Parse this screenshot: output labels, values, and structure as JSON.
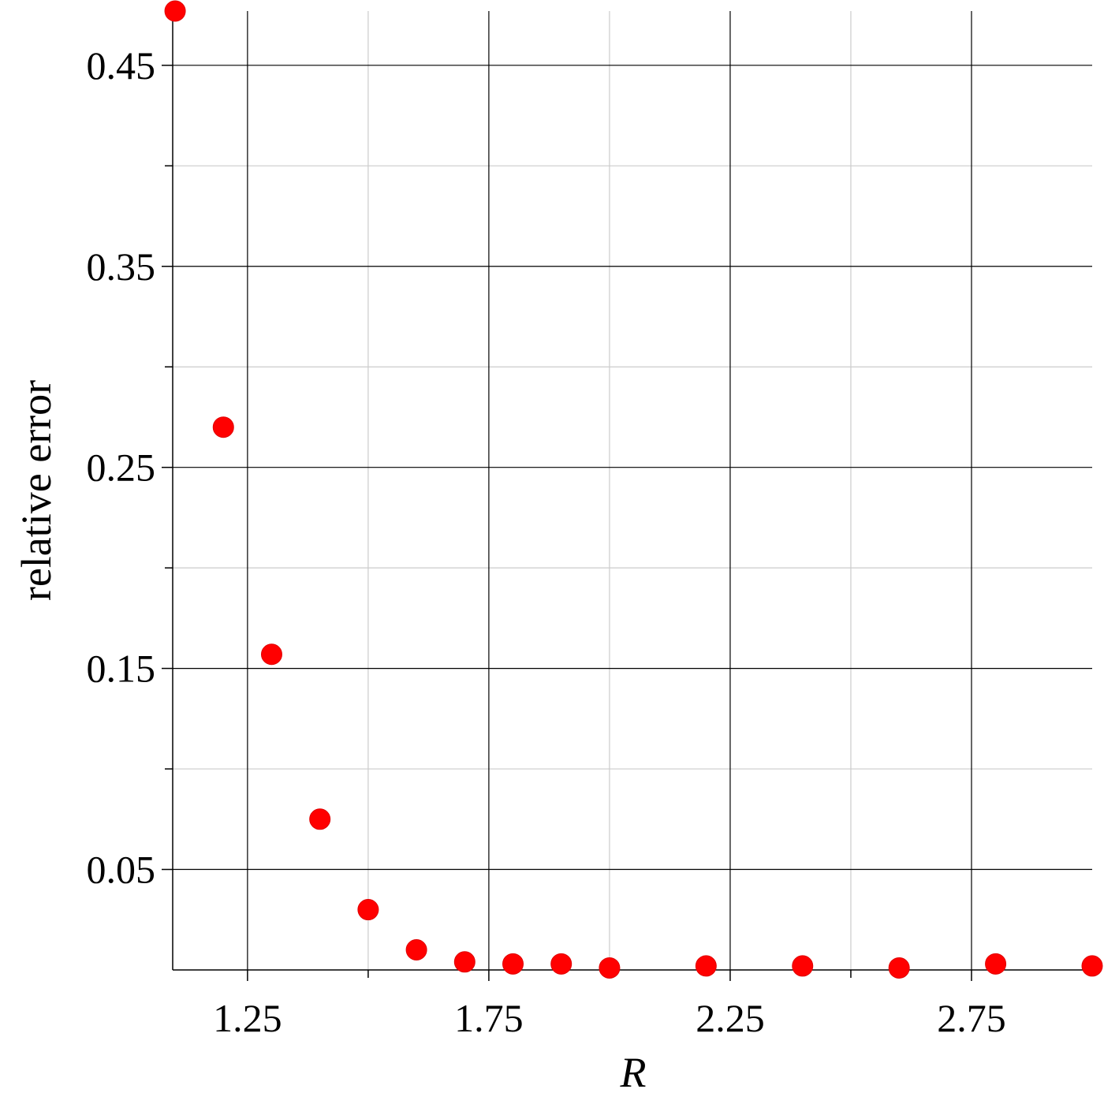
{
  "chart_data": {
    "type": "scatter",
    "title": "",
    "xlabel": "R",
    "ylabel": "relative error",
    "xlim": [
      1.095,
      3.0
    ],
    "ylim": [
      0.0,
      0.477
    ],
    "x_ticks": [
      1.25,
      1.75,
      2.25,
      2.75
    ],
    "x_tick_labels": [
      "1.25",
      "1.75",
      "2.25",
      "2.75"
    ],
    "x_minor_ticks": [
      1.5,
      2.0,
      2.5
    ],
    "y_ticks": [
      0.05,
      0.15,
      0.25,
      0.35,
      0.45
    ],
    "y_tick_labels": [
      "0.05",
      "0.15",
      "0.25",
      "0.35",
      "0.45"
    ],
    "y_minor_ticks": [
      0.1,
      0.2,
      0.3,
      0.4
    ],
    "grid": true,
    "legend": "none",
    "marker_color": "#ff0000",
    "major_grid_color": "#000000",
    "minor_grid_color": "#cccccc",
    "series": [
      {
        "points": [
          {
            "x": 1.1,
            "y": 0.477
          },
          {
            "x": 1.2,
            "y": 0.27
          },
          {
            "x": 1.3,
            "y": 0.157
          },
          {
            "x": 1.4,
            "y": 0.075
          },
          {
            "x": 1.5,
            "y": 0.03
          },
          {
            "x": 1.6,
            "y": 0.01
          },
          {
            "x": 1.7,
            "y": 0.004
          },
          {
            "x": 1.8,
            "y": 0.003
          },
          {
            "x": 1.9,
            "y": 0.003
          },
          {
            "x": 2.0,
            "y": 0.001
          },
          {
            "x": 2.2,
            "y": 0.002
          },
          {
            "x": 2.4,
            "y": 0.002
          },
          {
            "x": 2.6,
            "y": 0.001
          },
          {
            "x": 2.8,
            "y": 0.003
          },
          {
            "x": 3.0,
            "y": 0.002
          }
        ]
      }
    ]
  }
}
